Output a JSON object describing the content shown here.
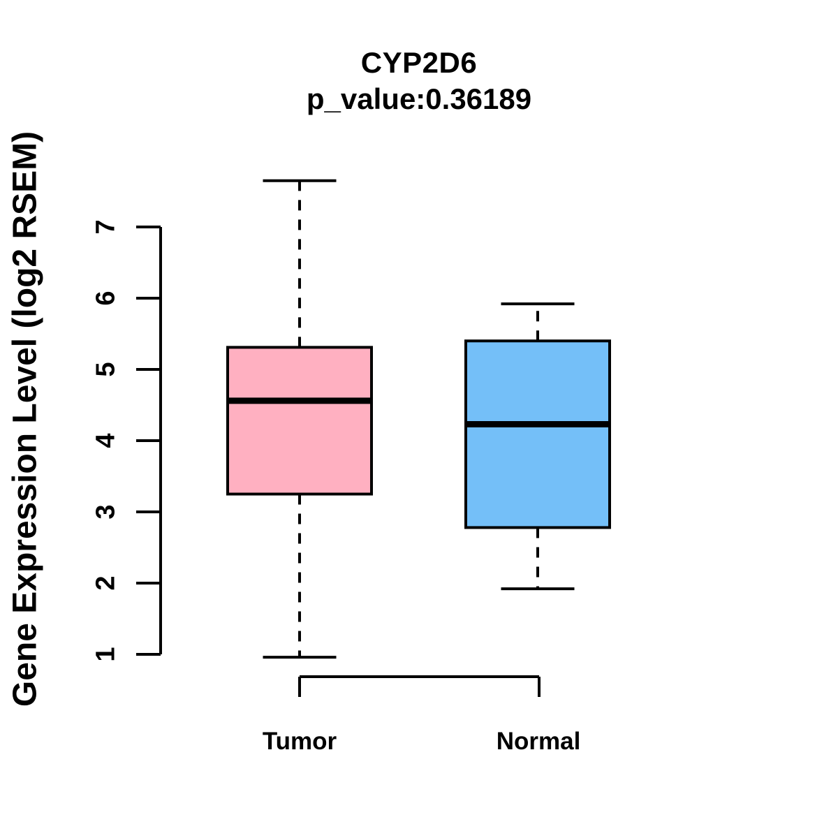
{
  "chart_data": {
    "type": "boxplot",
    "title": "CYP2D6",
    "subtitle": "p_value:0.36189",
    "ylabel": "Gene Expression Level (log2 RSEM)",
    "ylim": [
      1,
      7
    ],
    "yticks": [
      1,
      2,
      3,
      4,
      5,
      6,
      7
    ],
    "categories": [
      "Tumor",
      "Normal"
    ],
    "series": [
      {
        "name": "Tumor",
        "color": "#FFB0C1",
        "whisker_low": 0.96,
        "q1": 3.25,
        "median": 4.56,
        "q3": 5.31,
        "whisker_high": 7.65
      },
      {
        "name": "Normal",
        "color": "#74BFF8",
        "whisker_low": 1.92,
        "q1": 2.78,
        "median": 4.23,
        "q3": 5.4,
        "whisker_high": 5.92
      }
    ],
    "stroke_color": "#000000",
    "legend_position": "none",
    "grid": false
  }
}
